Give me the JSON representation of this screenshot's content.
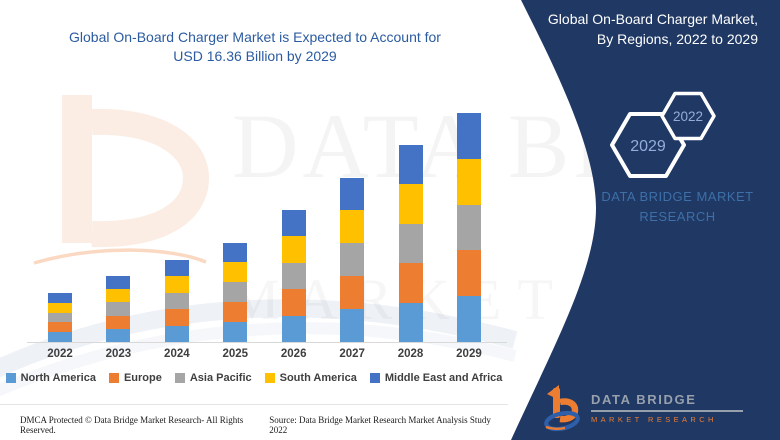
{
  "header": {
    "title_line1": "Global On-Board Charger Market is Expected to Account for",
    "title_line2": "USD 16.36 Billion by 2029"
  },
  "panel": {
    "title": "Global On-Board Charger Market, By Regions, 2022 to 2029",
    "hexagon_front_year": "2029",
    "hexagon_back_year": "2022",
    "brand_text_line1": "DATA BRIDGE MARKET",
    "brand_text_line2": "RESEARCH",
    "logo": {
      "name": "DATA BRIDGE",
      "tagline": "MARKET RESEARCH"
    }
  },
  "chart_data": {
    "type": "bar",
    "stacked": true,
    "title": "Global On-Board Charger Market is Expected to Account for USD 16.36 Billion by 2029",
    "unit": "USD Billion",
    "categories": [
      "2022",
      "2023",
      "2024",
      "2025",
      "2026",
      "2027",
      "2028",
      "2029"
    ],
    "series": [
      {
        "name": "North America",
        "color": "#5B9BD5",
        "values": [
          0.7,
          0.94,
          1.18,
          1.42,
          1.88,
          2.35,
          2.81,
          3.27
        ]
      },
      {
        "name": "Europe",
        "color": "#ED7D31",
        "values": [
          0.7,
          0.94,
          1.18,
          1.42,
          1.88,
          2.35,
          2.81,
          3.27
        ]
      },
      {
        "name": "Asia Pacific",
        "color": "#A5A5A5",
        "values": [
          0.7,
          0.94,
          1.18,
          1.42,
          1.88,
          2.35,
          2.81,
          3.27
        ]
      },
      {
        "name": "South America",
        "color": "#FFC000",
        "values": [
          0.7,
          0.94,
          1.18,
          1.42,
          1.88,
          2.35,
          2.81,
          3.27
        ]
      },
      {
        "name": "Middle East and Africa",
        "color": "#4472C4",
        "values": [
          0.7,
          0.94,
          1.18,
          1.42,
          1.88,
          2.35,
          2.81,
          3.28
        ]
      }
    ],
    "totals": [
      3.5,
      4.7,
      5.9,
      7.1,
      9.4,
      11.75,
      14.05,
      16.36
    ],
    "xlabel": "",
    "ylabel": "",
    "ylim": [
      0,
      16.5
    ],
    "grid": false,
    "value_labels": false,
    "legend_position": "bottom"
  },
  "watermarks": {
    "big_text": "DATA BRI",
    "secondary_text": "MARKET RESEARCH"
  },
  "footer": {
    "left": "DMCA Protected © Data Bridge Market Research- All Rights Reserved.",
    "right": "Source: Data Bridge Market Research Market Analysis Study 2022"
  },
  "colors": {
    "panel_navy": "#1F3864",
    "title_blue": "#2B5BA1",
    "brand_text_blue": "#3E6FA8",
    "hexagon_year_text": "#93AEDA",
    "accent_orange": "#ED7D31",
    "logo_blue": "#2F5FA8",
    "axis_line": "#D9D9D9",
    "label_gray": "#3F3F3F"
  }
}
